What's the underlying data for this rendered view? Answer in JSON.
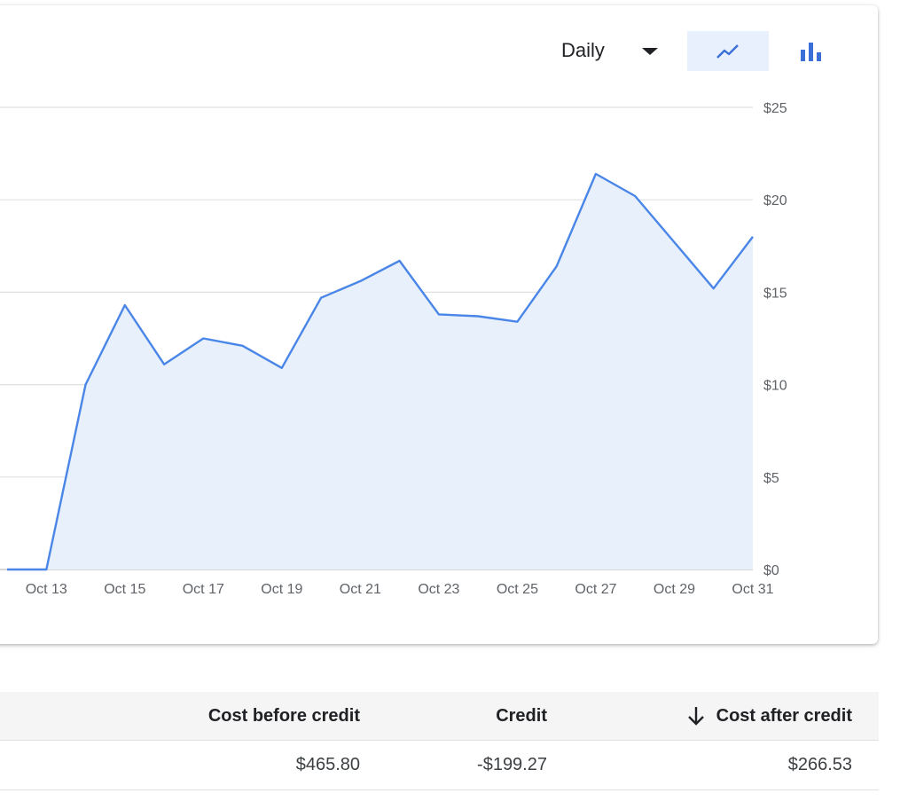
{
  "controls": {
    "period": "Daily",
    "chart_type_line_icon": "line-chart-icon",
    "chart_type_bar_icon": "bar-chart-icon",
    "active_chart_type": "line"
  },
  "chart_data": {
    "type": "area",
    "x": [
      "Oct 12",
      "Oct 13",
      "Oct 14",
      "Oct 15",
      "Oct 16",
      "Oct 17",
      "Oct 18",
      "Oct 19",
      "Oct 20",
      "Oct 21",
      "Oct 22",
      "Oct 23",
      "Oct 24",
      "Oct 25",
      "Oct 26",
      "Oct 27",
      "Oct 28",
      "Oct 29",
      "Oct 30",
      "Oct 31"
    ],
    "series": [
      {
        "values": [
          0,
          0,
          10,
          14.3,
          11.1,
          12.5,
          12.1,
          10.9,
          14.7,
          15.6,
          16.7,
          13.8,
          13.7,
          13.4,
          16.4,
          21.4,
          20.2,
          17.7,
          15.2,
          18
        ]
      }
    ],
    "x_tick_labels": [
      "Oct 13",
      "Oct 15",
      "Oct 17",
      "Oct 19",
      "Oct 21",
      "Oct 23",
      "Oct 25",
      "Oct 27",
      "Oct 29",
      "Oct 31"
    ],
    "y_tick_labels": [
      "$0",
      "$5",
      "$10",
      "$15",
      "$20",
      "$25"
    ],
    "ylim": [
      0,
      25
    ],
    "grid": true,
    "colors": {
      "line": "#4a86e8",
      "fill": "#e8f0fb",
      "grid": "#e0e0e0"
    }
  },
  "table": {
    "headers": {
      "cost_before": "Cost before credit",
      "credit": "Credit",
      "cost_after": "Cost after credit"
    },
    "rows": [
      {
        "cost_before": "$465.80",
        "credit": "-$199.27",
        "cost_after": "$266.53"
      }
    ]
  }
}
